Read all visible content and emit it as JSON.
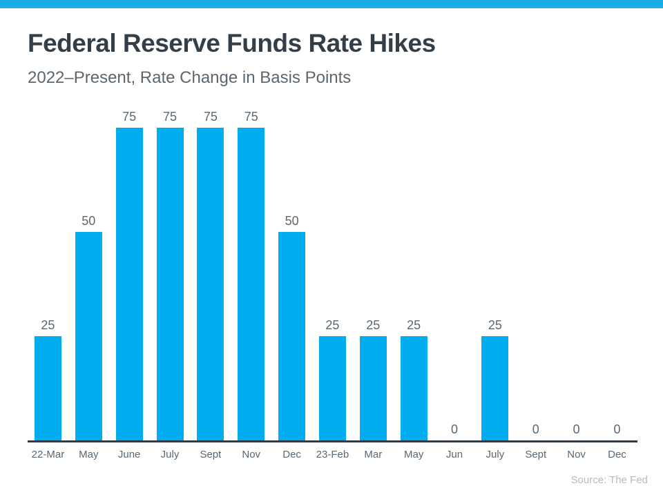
{
  "page": {
    "accent_color": "#18ACE8",
    "source_note": "Source: The Fed"
  },
  "chart_data": {
    "type": "bar",
    "title": "Federal Reserve Funds Rate Hikes",
    "subtitle": "2022–Present, Rate Change in Basis Points",
    "categories": [
      "22-Mar",
      "May",
      "June",
      "July",
      "Sept",
      "Nov",
      "Dec",
      "23-Feb",
      "Mar",
      "May",
      "Jun",
      "July",
      "Sept",
      "Nov",
      "Dec"
    ],
    "values": [
      25,
      50,
      75,
      75,
      75,
      75,
      50,
      25,
      25,
      25,
      0,
      25,
      0,
      0,
      0
    ],
    "xlabel": "",
    "ylabel": "",
    "ylim": [
      0,
      80
    ],
    "grid": false,
    "legend": false,
    "value_labels_position": "above bars",
    "bar_color": "#00ADEF",
    "value_label_color": "#5B6770",
    "x_label_color": "#5B6770",
    "axis_line_color": "#2E3A45",
    "title_color": "#333E48",
    "subtitle_color": "#5B6770",
    "source_color": "#B4BBC1"
  }
}
